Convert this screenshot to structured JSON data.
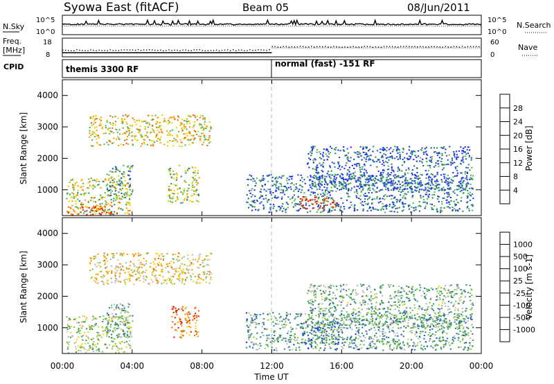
{
  "header": {
    "title": "Syowa East (fitACF)",
    "beam": "Beam 05",
    "date": "08/Jun/2011"
  },
  "noise_panel": {
    "left_label": "N.Sky",
    "right_label": "N.Search",
    "left_ticks": [
      "10^5",
      "10^0"
    ],
    "right_ticks": [
      "10^5",
      "10^0"
    ]
  },
  "freq_panel": {
    "left_label_line1": "Freq.",
    "left_label_line2": "[MHz]",
    "right_label": "Nave",
    "left_ticks": [
      "18",
      "8"
    ],
    "right_ticks": [
      "60",
      "0"
    ]
  },
  "cpid_panel": {
    "label": "CPID",
    "segments": [
      {
        "text": "themis 3300 RF",
        "start_hour": 0
      },
      {
        "text": "normal (fast) -151 RF",
        "start_hour": 12
      }
    ]
  },
  "time_axis": {
    "label": "Time UT",
    "ticks": [
      "00:00",
      "04:00",
      "08:00",
      "12:00",
      "16:00",
      "20:00",
      "00:00"
    ]
  },
  "chart_data": [
    {
      "type": "heatmap",
      "name": "power",
      "ylabel": "Slant Range [km]",
      "ylim": [
        180,
        4500
      ],
      "xlim_hours": [
        0,
        24
      ],
      "yticks": [
        "1000",
        "2000",
        "3000",
        "4000"
      ],
      "colorbar": {
        "label": "Power [dB]",
        "ticks": [
          "4",
          "8",
          "12",
          "16",
          "20",
          "24",
          "28"
        ],
        "colors": [
          "#1a2bff",
          "#2753b8",
          "#2c8a66",
          "#57b45e",
          "#f0d000",
          "#f5a000",
          "#f06a00",
          "#e02000"
        ]
      },
      "regions": [
        {
          "t0": 0.2,
          "t1": 3.9,
          "r0": 200,
          "r1": 1400,
          "level": 0.55
        },
        {
          "t0": 0.2,
          "t1": 3.2,
          "r0": 200,
          "r1": 500,
          "level": 0.9
        },
        {
          "t0": 2.5,
          "t1": 4.0,
          "r0": 700,
          "r1": 1800,
          "level": 0.35
        },
        {
          "t0": 6.0,
          "t1": 7.8,
          "r0": 600,
          "r1": 1800,
          "level": 0.5
        },
        {
          "t0": 10.5,
          "t1": 23.5,
          "r0": 300,
          "r1": 1500,
          "level": 0.25
        },
        {
          "t0": 13.6,
          "t1": 15.8,
          "r0": 400,
          "r1": 800,
          "level": 0.9
        },
        {
          "t0": 14.0,
          "t1": 23.5,
          "r0": 1000,
          "r1": 2400,
          "level": 0.2
        },
        {
          "t0": 1.5,
          "t1": 8.5,
          "r0": 2400,
          "r1": 3400,
          "level": 0.6
        }
      ]
    },
    {
      "type": "heatmap",
      "name": "velocity",
      "ylabel": "Slant Range [km]",
      "ylim": [
        180,
        4500
      ],
      "xlim_hours": [
        0,
        24
      ],
      "yticks": [
        "1000",
        "2000",
        "3000",
        "4000"
      ],
      "colorbar": {
        "label": "Velocity [m s-1]",
        "ticks": [
          "1000",
          "500",
          "100",
          "25",
          "-25",
          "-100",
          "-500",
          "-1000"
        ],
        "colors": [
          "#1a3fcc",
          "#2e6ea8",
          "#3a9a5c",
          "#7cc844",
          "#b8b8b8",
          "#f5d020",
          "#f5a000",
          "#f06a00",
          "#e02000"
        ]
      },
      "regions": [
        {
          "t0": 0.2,
          "t1": 3.9,
          "r0": 200,
          "r1": 1400,
          "level": 0.45
        },
        {
          "t0": 2.5,
          "t1": 4.0,
          "r0": 700,
          "r1": 1800,
          "level": 0.35
        },
        {
          "t0": 6.2,
          "t1": 7.8,
          "r0": 700,
          "r1": 1700,
          "level": 0.85
        },
        {
          "t0": 10.5,
          "t1": 23.5,
          "r0": 300,
          "r1": 1500,
          "level": 0.3
        },
        {
          "t0": 13.6,
          "t1": 15.8,
          "r0": 500,
          "r1": 1200,
          "level": 0.2
        },
        {
          "t0": 14.0,
          "t1": 23.5,
          "r0": 1000,
          "r1": 2400,
          "level": 0.35
        },
        {
          "t0": 1.5,
          "t1": 8.5,
          "r0": 2400,
          "r1": 3400,
          "level": 0.6
        }
      ]
    }
  ]
}
